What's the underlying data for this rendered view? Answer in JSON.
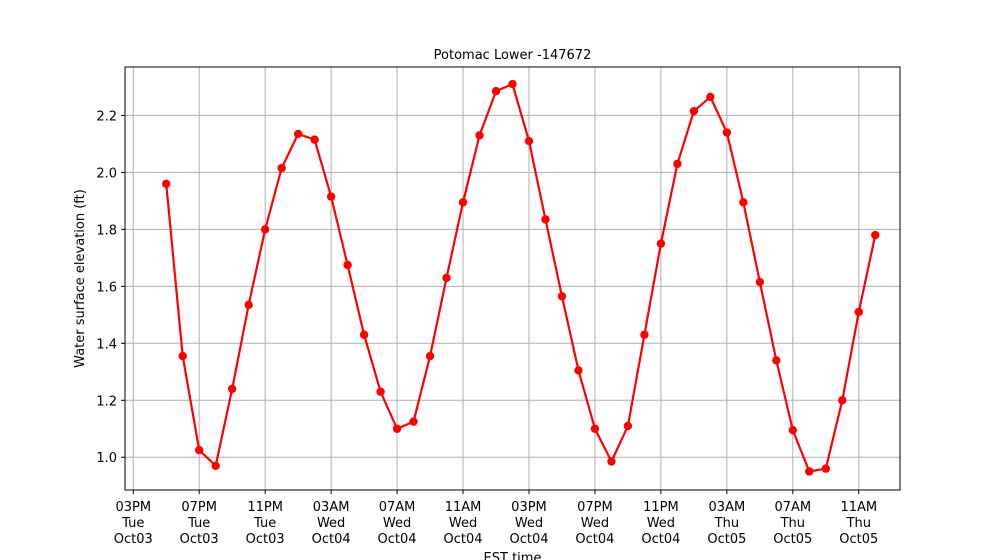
{
  "chart_data": {
    "type": "line",
    "title": "Potomac Lower -147672",
    "xlabel": "EST time",
    "ylabel": "Water surface elevation (ft)",
    "xlim": [
      -0.5,
      46.5
    ],
    "ylim": [
      0.885,
      2.37
    ],
    "grid": true,
    "x_ticks": [
      {
        "x": 0,
        "lines": [
          "03PM",
          "Tue",
          "Oct03"
        ]
      },
      {
        "x": 4,
        "lines": [
          "07PM",
          "Tue",
          "Oct03"
        ]
      },
      {
        "x": 8,
        "lines": [
          "11PM",
          "Tue",
          "Oct03"
        ]
      },
      {
        "x": 12,
        "lines": [
          "03AM",
          "Wed",
          "Oct04"
        ]
      },
      {
        "x": 16,
        "lines": [
          "07AM",
          "Wed",
          "Oct04"
        ]
      },
      {
        "x": 20,
        "lines": [
          "11AM",
          "Wed",
          "Oct04"
        ]
      },
      {
        "x": 24,
        "lines": [
          "03PM",
          "Wed",
          "Oct04"
        ]
      },
      {
        "x": 28,
        "lines": [
          "07PM",
          "Wed",
          "Oct04"
        ]
      },
      {
        "x": 32,
        "lines": [
          "11PM",
          "Wed",
          "Oct04"
        ]
      },
      {
        "x": 36,
        "lines": [
          "03AM",
          "Thu",
          "Oct05"
        ]
      },
      {
        "x": 40,
        "lines": [
          "07AM",
          "Thu",
          "Oct05"
        ]
      },
      {
        "x": 44,
        "lines": [
          "11AM",
          "Thu",
          "Oct05"
        ]
      }
    ],
    "y_ticks": [
      "1.0",
      "1.2",
      "1.4",
      "1.6",
      "1.8",
      "2.0",
      "2.2"
    ],
    "series": [
      {
        "color": "#ff0000",
        "points": [
          [
            2,
            1.96
          ],
          [
            3,
            1.355
          ],
          [
            4,
            1.025
          ],
          [
            5,
            0.97
          ],
          [
            6,
            1.24
          ],
          [
            7,
            1.535
          ],
          [
            8,
            1.8
          ],
          [
            9,
            2.015
          ],
          [
            10,
            2.135
          ],
          [
            11,
            2.115
          ],
          [
            12,
            1.915
          ],
          [
            13,
            1.675
          ],
          [
            14,
            1.43
          ],
          [
            15,
            1.23
          ],
          [
            16,
            1.1
          ],
          [
            17,
            1.125
          ],
          [
            18,
            1.355
          ],
          [
            19,
            1.63
          ],
          [
            20,
            1.895
          ],
          [
            21,
            2.13
          ],
          [
            22,
            2.285
          ],
          [
            23,
            2.31
          ],
          [
            24,
            2.11
          ],
          [
            25,
            1.835
          ],
          [
            26,
            1.565
          ],
          [
            27,
            1.305
          ],
          [
            28,
            1.1
          ],
          [
            29,
            0.985
          ],
          [
            30,
            1.11
          ],
          [
            31,
            1.43
          ],
          [
            32,
            1.75
          ],
          [
            33,
            2.03
          ],
          [
            34,
            2.215
          ],
          [
            35,
            2.265
          ],
          [
            36,
            2.14
          ],
          [
            37,
            1.895
          ],
          [
            38,
            1.615
          ],
          [
            39,
            1.34
          ],
          [
            40,
            1.095
          ],
          [
            41,
            0.95
          ],
          [
            42,
            0.96
          ],
          [
            43,
            1.2
          ],
          [
            44,
            1.51
          ],
          [
            45,
            1.78
          ]
        ]
      }
    ]
  }
}
